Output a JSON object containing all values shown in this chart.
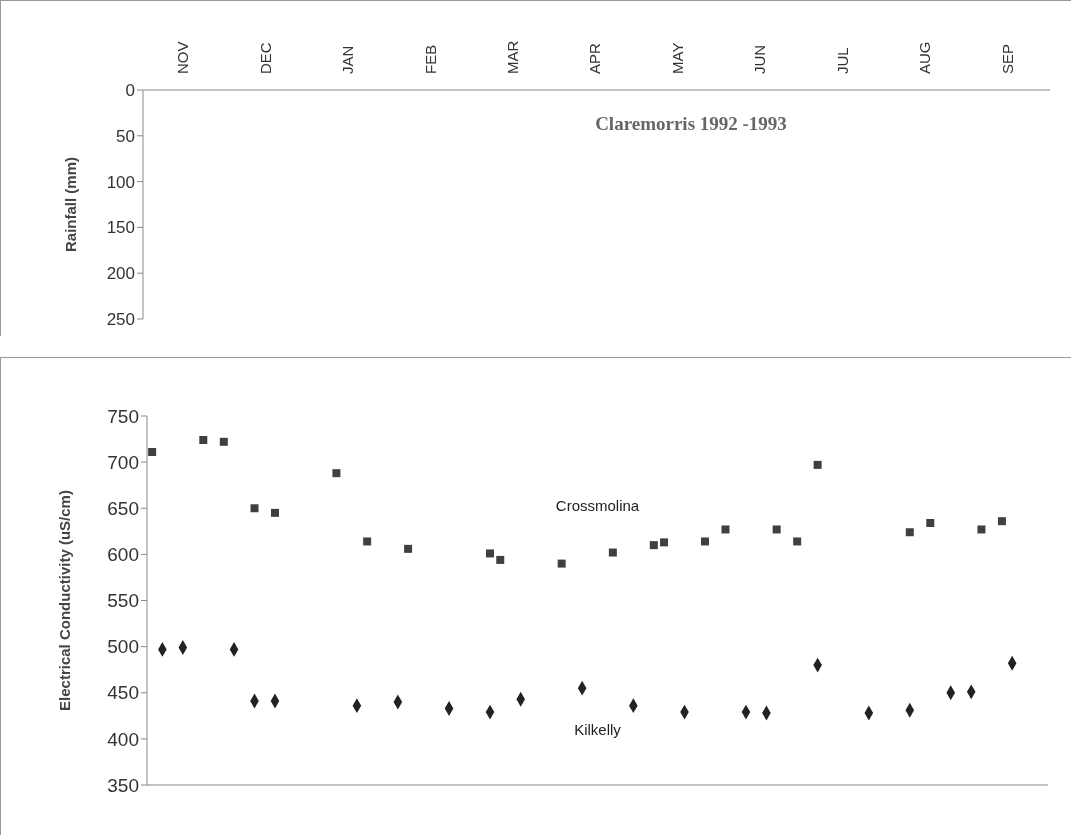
{
  "chart_data": [
    {
      "type": "bar",
      "ylabel": "Rainfall (mm)",
      "categories": [
        "NOV",
        "DEC",
        "JAN",
        "FEB",
        "MAR",
        "APR",
        "MAY",
        "JUN",
        "JUL",
        "AUG",
        "SEP"
      ],
      "values": [
        null,
        null,
        null,
        null,
        null,
        null,
        null,
        null,
        null,
        null,
        null
      ],
      "ylim": [
        250,
        0
      ],
      "yticks": [
        0,
        50,
        100,
        150,
        200,
        250
      ],
      "annotations": [
        "Claremorris 1992 -1993"
      ]
    },
    {
      "type": "scatter",
      "ylabel": "Electrical Conductivity (uS/cm)",
      "ylim": [
        350,
        750
      ],
      "yticks": [
        350,
        400,
        450,
        500,
        550,
        600,
        650,
        700,
        750
      ],
      "categories": [
        null,
        null,
        null,
        null,
        null,
        null,
        null,
        null,
        null,
        null,
        null,
        null,
        null,
        null,
        null,
        null,
        null,
        null,
        null,
        null,
        null,
        null,
        null,
        null,
        null,
        null,
        null,
        null,
        null,
        null,
        null,
        null,
        null,
        null,
        null,
        null,
        null,
        null,
        null,
        null,
        null,
        null,
        null,
        null,
        null,
        null,
        null,
        null,
        null,
        null,
        null,
        null,
        null,
        null,
        null,
        null,
        null,
        null,
        null,
        null,
        null,
        null,
        null,
        null,
        null,
        null,
        null,
        null,
        null,
        null,
        null,
        null,
        null,
        null,
        null,
        null,
        null,
        null,
        null,
        null,
        null,
        null,
        null,
        null,
        null,
        null,
        null,
        null
      ],
      "series": [
        {
          "name": "Crossmolina",
          "color": "#404040",
          "marker": "square",
          "values": [
            711,
            null,
            null,
            null,
            null,
            724,
            null,
            722,
            null,
            null,
            650,
            null,
            645,
            null,
            null,
            null,
            null,
            null,
            688,
            null,
            null,
            614,
            null,
            null,
            null,
            606,
            null,
            null,
            null,
            null,
            null,
            null,
            null,
            601,
            594,
            null,
            null,
            null,
            null,
            null,
            590,
            null,
            null,
            null,
            null,
            602,
            null,
            null,
            null,
            610,
            613,
            null,
            null,
            null,
            614,
            null,
            627,
            null,
            null,
            null,
            null,
            627,
            null,
            614,
            null,
            697,
            null,
            null,
            null,
            null,
            null,
            null,
            null,
            null,
            624,
            null,
            634,
            null,
            null,
            null,
            null,
            627,
            null,
            636,
            null,
            null,
            null,
            null
          ]
        },
        {
          "name": "Kilkelly",
          "color": "#222222",
          "marker": "diamond",
          "values": [
            null,
            497,
            null,
            499,
            null,
            null,
            null,
            null,
            497,
            null,
            441,
            null,
            441,
            null,
            null,
            null,
            null,
            null,
            null,
            null,
            436,
            null,
            null,
            null,
            440,
            null,
            null,
            null,
            null,
            433,
            null,
            null,
            null,
            429,
            null,
            null,
            443,
            null,
            null,
            null,
            null,
            null,
            455,
            null,
            null,
            null,
            null,
            436,
            null,
            null,
            null,
            null,
            429,
            null,
            null,
            null,
            null,
            null,
            429,
            null,
            428,
            null,
            null,
            null,
            null,
            480,
            null,
            null,
            null,
            null,
            428,
            null,
            null,
            null,
            431,
            null,
            null,
            null,
            450,
            null,
            451,
            null,
            null,
            null,
            482,
            null,
            null,
            null
          ]
        }
      ]
    }
  ]
}
